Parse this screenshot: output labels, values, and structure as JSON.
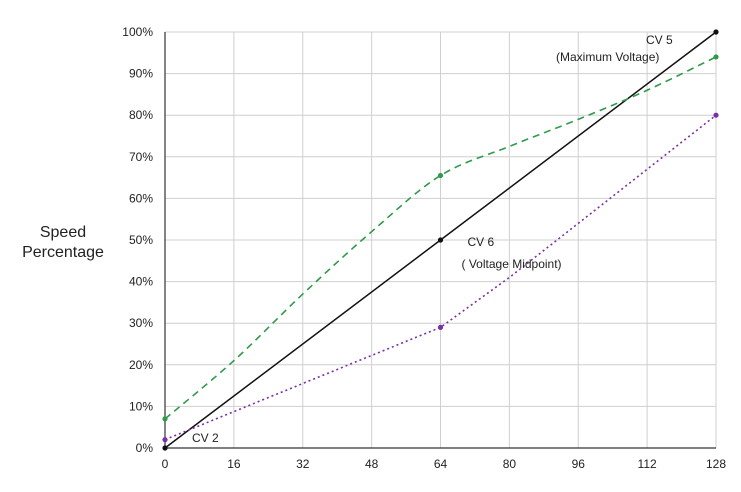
{
  "chart_data": {
    "type": "line",
    "title": "",
    "xlabel": "",
    "ylabel_lines": [
      "Speed",
      "Percentage"
    ],
    "xlim": [
      0,
      128
    ],
    "ylim": [
      0,
      100
    ],
    "x_ticks": [
      {
        "value": 0,
        "label": "0"
      },
      {
        "value": 16,
        "label": "16"
      },
      {
        "value": 32,
        "label": "32"
      },
      {
        "value": 48,
        "label": "48"
      },
      {
        "value": 64,
        "label": "64"
      },
      {
        "value": 80,
        "label": "80"
      },
      {
        "value": 96,
        "label": "96"
      },
      {
        "value": 112,
        "label": "112"
      },
      {
        "value": 128,
        "label": "128"
      }
    ],
    "y_ticks": [
      {
        "value": 0,
        "label": "0%"
      },
      {
        "value": 10,
        "label": "10%"
      },
      {
        "value": 20,
        "label": "20%"
      },
      {
        "value": 30,
        "label": "30%"
      },
      {
        "value": 40,
        "label": "40%"
      },
      {
        "value": 50,
        "label": "50%"
      },
      {
        "value": 60,
        "label": "60%"
      },
      {
        "value": 70,
        "label": "70%"
      },
      {
        "value": 80,
        "label": "80%"
      },
      {
        "value": 90,
        "label": "90%"
      },
      {
        "value": 100,
        "label": "100%"
      }
    ],
    "grid": true,
    "legend": "none",
    "series": [
      {
        "style": "solid",
        "color": "#111111",
        "curve": "linear",
        "points": [
          {
            "x": 0,
            "y": 0
          },
          {
            "x": 64,
            "y": 50
          },
          {
            "x": 128,
            "y": 100
          }
        ],
        "markers": [
          {
            "x": 0,
            "y": 0
          },
          {
            "x": 64,
            "y": 50
          },
          {
            "x": 128,
            "y": 100
          }
        ]
      },
      {
        "style": "dashed",
        "color": "#2e9a4c",
        "curve": "smooth",
        "points": [
          {
            "x": 0,
            "y": 7
          },
          {
            "x": 16,
            "y": 21
          },
          {
            "x": 32,
            "y": 37
          },
          {
            "x": 48,
            "y": 52
          },
          {
            "x": 64,
            "y": 65.5
          },
          {
            "x": 80,
            "y": 72.5
          },
          {
            "x": 96,
            "y": 79
          },
          {
            "x": 112,
            "y": 86
          },
          {
            "x": 128,
            "y": 94
          }
        ],
        "markers": [
          {
            "x": 0,
            "y": 7
          },
          {
            "x": 64,
            "y": 65.5
          },
          {
            "x": 128,
            "y": 94
          }
        ]
      },
      {
        "style": "dotted",
        "color": "#7a2fa3",
        "curve": "linear",
        "points": [
          {
            "x": 0,
            "y": 2
          },
          {
            "x": 64,
            "y": 29
          },
          {
            "x": 80,
            "y": 41
          },
          {
            "x": 96,
            "y": 54
          },
          {
            "x": 112,
            "y": 67
          },
          {
            "x": 128,
            "y": 80
          }
        ],
        "markers": [
          {
            "x": 0,
            "y": 2
          },
          {
            "x": 64,
            "y": 29
          },
          {
            "x": 128,
            "y": 80
          }
        ]
      }
    ],
    "annotations": [
      {
        "lines": [
          "CV 2"
        ],
        "anchor_x": 0,
        "anchor_y": 0,
        "position": "right"
      },
      {
        "lines": [
          "CV 6",
          "( Voltage Midpoint)"
        ],
        "anchor_x": 64,
        "anchor_y": 50,
        "position": "right"
      },
      {
        "lines": [
          "CV 5",
          "(Maximum Voltage)"
        ],
        "anchor_x": 128,
        "anchor_y": 100,
        "position": "left"
      }
    ]
  }
}
